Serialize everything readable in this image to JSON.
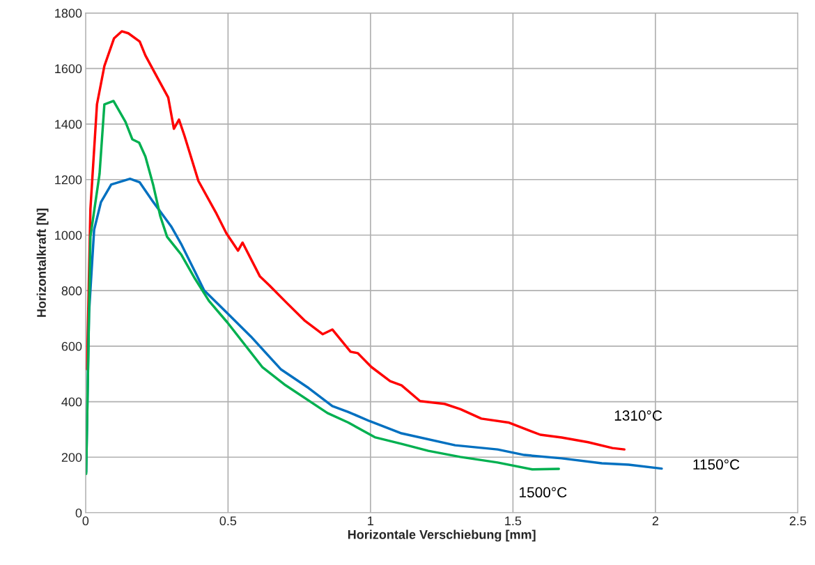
{
  "chart_data": {
    "type": "line",
    "xlabel": "Horizontale Verschiebung [mm]",
    "ylabel": "Horizontalkraft [N]",
    "xlim": [
      0,
      2.5
    ],
    "xticks": [
      0,
      0.5,
      1,
      1.5,
      2,
      2.5
    ],
    "ylim": [
      0,
      1800
    ],
    "yticks": [
      0,
      200,
      400,
      600,
      800,
      1000,
      1200,
      1400,
      1600,
      1800
    ],
    "grid": true,
    "legend": false,
    "series": [
      {
        "name": "1310°C",
        "color": "#ff0000",
        "x": [
          0.005,
          0.017,
          0.04,
          0.066,
          0.1,
          0.127,
          0.15,
          0.19,
          0.21,
          0.25,
          0.29,
          0.31,
          0.328,
          0.347,
          0.396,
          0.457,
          0.494,
          0.535,
          0.551,
          0.612,
          0.646,
          0.702,
          0.768,
          0.832,
          0.866,
          0.93,
          0.955,
          1.003,
          1.069,
          1.109,
          1.174,
          1.26,
          1.316,
          1.389,
          1.484,
          1.596,
          1.671,
          1.764,
          1.849,
          1.891
        ],
        "values": [
          517,
          1094,
          1471,
          1609,
          1709,
          1734,
          1727,
          1697,
          1647,
          1571,
          1496,
          1383,
          1416,
          1358,
          1195,
          1082,
          1007,
          944,
          973,
          851,
          818,
          760,
          693,
          643,
          660,
          580,
          575,
          525,
          474,
          459,
          402,
          392,
          373,
          339,
          325,
          281,
          271,
          254,
          233,
          228
        ]
      },
      {
        "name": "1150°C",
        "color": "#0070c0",
        "x": [
          0.002,
          0.012,
          0.03,
          0.054,
          0.09,
          0.156,
          0.19,
          0.237,
          0.3,
          0.335,
          0.384,
          0.416,
          0.498,
          0.58,
          0.685,
          0.783,
          0.866,
          0.922,
          0.997,
          1.109,
          1.297,
          1.446,
          1.54,
          1.671,
          1.812,
          1.906,
          2.022
        ],
        "values": [
          146,
          718,
          1019,
          1119,
          1182,
          1203,
          1190,
          1120,
          1032,
          969,
          868,
          801,
          718,
          635,
          517,
          449,
          384,
          363,
          330,
          286,
          243,
          228,
          208,
          196,
          178,
          173,
          159
        ]
      },
      {
        "name": "1500°C",
        "color": "#00b050",
        "x": [
          0.002,
          0.01,
          0.017,
          0.049,
          0.066,
          0.098,
          0.14,
          0.164,
          0.188,
          0.21,
          0.237,
          0.262,
          0.286,
          0.335,
          0.384,
          0.433,
          0.498,
          0.62,
          0.702,
          0.849,
          0.922,
          1.015,
          1.109,
          1.203,
          1.315,
          1.446,
          1.568,
          1.661
        ],
        "values": [
          140,
          592,
          994,
          1220,
          1471,
          1483,
          1408,
          1345,
          1333,
          1283,
          1182,
          1069,
          994,
          931,
          843,
          763,
          685,
          525,
          459,
          359,
          325,
          272,
          248,
          223,
          201,
          181,
          156,
          158
        ]
      }
    ]
  }
}
